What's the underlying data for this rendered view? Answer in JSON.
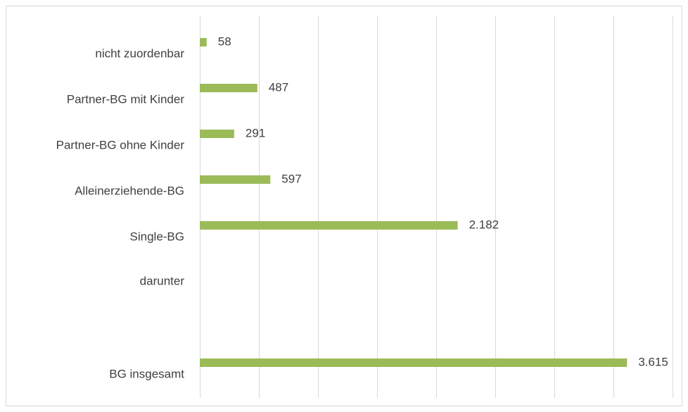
{
  "chart_data": {
    "type": "bar",
    "orientation": "horizontal",
    "categories": [
      "nicht zuordenbar",
      "Partner-BG mit Kinder",
      "Partner-BG ohne Kinder",
      "Alleinerziehende-BG",
      "Single-BG",
      "darunter",
      null,
      "BG insgesamt"
    ],
    "values": [
      58,
      487,
      291,
      597,
      2182,
      null,
      null,
      3615
    ],
    "value_labels": [
      "58",
      "487",
      "291",
      "597",
      "2.182",
      null,
      null,
      "3.615"
    ],
    "color": "#9bbb59",
    "xlim": [
      0,
      4000
    ],
    "xticks": [
      0,
      500,
      1000,
      1500,
      2000,
      2500,
      3000,
      3500,
      4000
    ],
    "grid": true
  }
}
